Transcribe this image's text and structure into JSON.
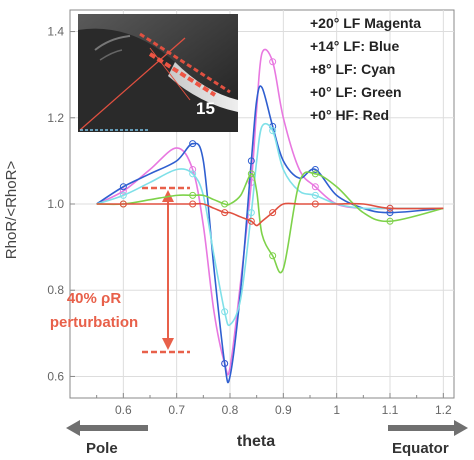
{
  "chart_data": {
    "type": "line",
    "title": "",
    "xlabel": "theta",
    "ylabel": "RhoR/<RhoR>",
    "xlim": [
      0.5,
      1.22
    ],
    "ylim": [
      0.55,
      1.45
    ],
    "x_ticks": [
      "0.6",
      "0.7",
      "0.8",
      "0.9",
      "1",
      "1.1",
      "1.2"
    ],
    "y_ticks": [
      "0.6",
      "0.8",
      "1.0",
      "1.2",
      "1.4"
    ],
    "grid": true,
    "legend": [
      "+20° LF Magenta",
      "+14° LF: Blue",
      "+8° LF: Cyan",
      "+0° LF: Green",
      "+0° HF: Red"
    ],
    "legend_position": "top-right",
    "x": [
      0.55,
      0.6,
      0.65,
      0.7,
      0.73,
      0.75,
      0.77,
      0.79,
      0.8,
      0.82,
      0.84,
      0.85,
      0.86,
      0.88,
      0.9,
      0.93,
      0.96,
      1.0,
      1.05,
      1.1,
      1.2
    ],
    "series": [
      {
        "color": "#e878e0",
        "values": [
          1.0,
          1.03,
          1.08,
          1.13,
          1.08,
          0.95,
          0.75,
          0.63,
          0.62,
          0.82,
          1.05,
          1.22,
          1.35,
          1.33,
          1.2,
          1.08,
          1.04,
          1.0,
          0.99,
          0.99,
          0.99
        ]
      },
      {
        "color": "#2f5fd0",
        "values": [
          1.0,
          1.04,
          1.07,
          1.1,
          1.14,
          1.1,
          0.85,
          0.63,
          0.6,
          0.8,
          1.1,
          1.24,
          1.27,
          1.18,
          1.1,
          1.06,
          1.08,
          1.02,
          0.99,
          0.98,
          0.99
        ]
      },
      {
        "color": "#7fe0e8",
        "values": [
          1.0,
          1.02,
          1.05,
          1.08,
          1.07,
          1.02,
          0.88,
          0.75,
          0.72,
          0.78,
          0.98,
          1.1,
          1.18,
          1.17,
          1.08,
          1.03,
          1.02,
          1.0,
          0.99,
          0.99,
          0.99
        ]
      },
      {
        "color": "#7ed24a",
        "values": [
          1.0,
          1.0,
          1.01,
          1.02,
          1.02,
          1.02,
          1.01,
          1.0,
          1.0,
          1.02,
          1.07,
          1.03,
          0.93,
          0.88,
          0.85,
          1.05,
          1.07,
          1.04,
          0.98,
          0.96,
          0.99
        ]
      },
      {
        "color": "#e05040",
        "values": [
          1.0,
          1.0,
          1.0,
          1.0,
          1.0,
          1.0,
          0.99,
          0.98,
          0.98,
          0.97,
          0.96,
          0.95,
          0.96,
          0.98,
          1.0,
          1.0,
          1.0,
          1.0,
          1.0,
          0.99,
          0.99
        ]
      }
    ],
    "annotations": {
      "perturbation_line1": "40% ρR",
      "perturbation_line2": "perturbation",
      "pole": "Pole",
      "equator": "Equator",
      "inset_number": "15"
    },
    "colors": {
      "annotation": "#e8604a",
      "axis": "#888888",
      "grid": "#dddddd",
      "arrow": "#707070"
    }
  }
}
